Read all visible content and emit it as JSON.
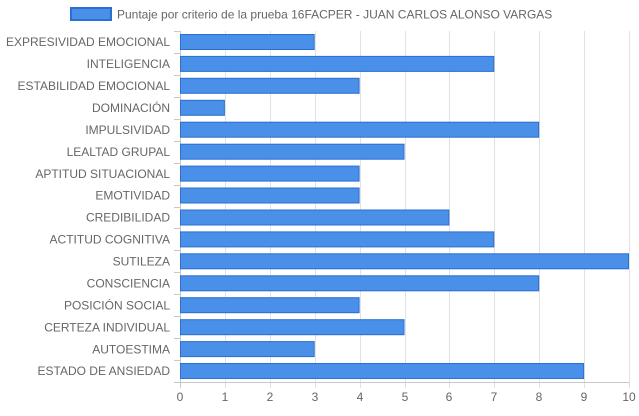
{
  "chart_data": {
    "type": "bar",
    "orientation": "horizontal",
    "categories": [
      "EXPRESIVIDAD EMOCIONAL",
      "INTELIGENCIA",
      "ESTABILIDAD EMOCIONAL",
      "DOMINACIÓN",
      "IMPULSIVIDAD",
      "LEALTAD GRUPAL",
      "APTITUD SITUACIONAL",
      "EMOTIVIDAD",
      "CREDIBILIDAD",
      "ACTITUD COGNITIVA",
      "SUTILEZA",
      "CONSCIENCIA",
      "POSICIÓN SOCIAL",
      "CERTEZA INDIVIDUAL",
      "AUTOESTIMA",
      "ESTADO DE ANSIEDAD"
    ],
    "series": [
      {
        "name": "Puntaje por criterio de la prueba 16FACPER - JUAN CARLOS ALONSO VARGAS",
        "values": [
          3,
          7,
          4,
          1,
          8,
          5,
          4,
          4,
          6,
          7,
          10,
          8,
          4,
          5,
          3,
          9
        ],
        "color": "#4a90e8",
        "border_color": "#2a6fd1"
      }
    ],
    "xlim": [
      0,
      10
    ],
    "x_ticks": [
      "0",
      "1",
      "2",
      "3",
      "4",
      "5",
      "6",
      "7",
      "8",
      "9",
      "10"
    ],
    "grid": true,
    "legend_position": "top-center",
    "title": "",
    "xlabel": "",
    "ylabel": ""
  }
}
